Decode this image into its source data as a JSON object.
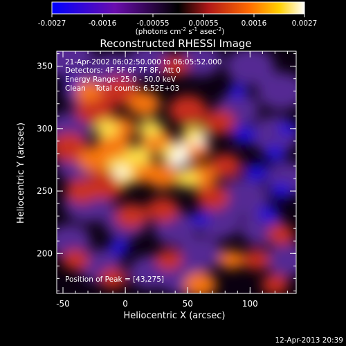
{
  "chart_data": {
    "type": "heatmap",
    "title": "Reconstructed RHESSI Image",
    "colorbar": {
      "ticks": [
        "-0.0027",
        "-0.0016",
        "-0.00055",
        "0.00055",
        "0.0016",
        "0.0027"
      ],
      "unit_label": "(photons cm",
      "unit_exp1": "-2",
      "unit_mid": " s",
      "unit_exp2": "-1",
      "unit_mid2": " asec",
      "unit_exp3": "-2",
      "unit_close": ")",
      "range": [
        -0.0027,
        0.0027
      ],
      "colormap": [
        "#0000ff",
        "#6a0dad",
        "#000000",
        "#b01818",
        "#ff6a00",
        "#ffd000",
        "#ffffff"
      ]
    },
    "xlabel": "Heliocentric X (arcsec)",
    "ylabel": "Heliocentric Y (arcsec)",
    "xlim": [
      -55,
      137
    ],
    "ylim": [
      168,
      362
    ],
    "xticks": [
      "-50",
      "0",
      "50",
      "100"
    ],
    "xtick_values": [
      -50,
      0,
      50,
      100
    ],
    "yticks": [
      "200",
      "250",
      "300",
      "350"
    ],
    "ytick_values": [
      200,
      250,
      300,
      350
    ],
    "annotations": [
      "21-Apr-2002 06:02:50.000 to 06:05:52.000",
      "Detectors: 4F 5F 6F 7F 8F, Att 0",
      "Energy Range: 25.0 - 50.0 keV",
      "Clean    Total counts: 6.52E+03"
    ],
    "peak_label": "Position of Peak = [43,275]",
    "peak": [
      43,
      275
    ]
  },
  "footer": {
    "timestamp": "12-Apr-2013 20:39"
  }
}
